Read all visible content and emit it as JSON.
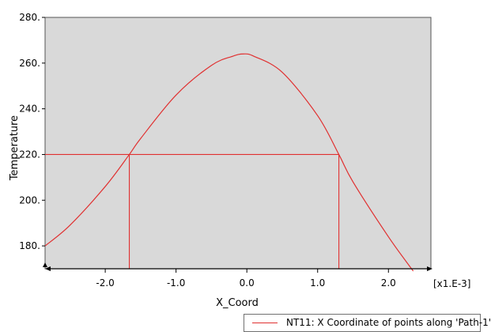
{
  "chart_data": {
    "type": "line",
    "xlabel": "X_Coord",
    "ylabel": "Temperature",
    "x_multiplier_label": "[x1.E-3]",
    "xlim": [
      -2.85,
      2.6
    ],
    "ylim": [
      170,
      280
    ],
    "x_ticks": [
      -2.0,
      -1.0,
      0.0,
      1.0,
      2.0
    ],
    "x_tick_labels": [
      "-2.0",
      "-1.0",
      "0.0",
      "1.0",
      "2.0"
    ],
    "y_ticks": [
      180,
      200,
      220,
      240,
      260,
      280
    ],
    "y_tick_labels": [
      "180.",
      "200.",
      "220.",
      "240.",
      "260.",
      "280."
    ],
    "legend_position": "bottom-right",
    "colors": {
      "plot_background": "#d9d9d9",
      "series": "#e03030"
    },
    "series": [
      {
        "name": "NT11: X Coordinate of points along 'Path-1'",
        "x": [
          -2.85,
          -2.5,
          -2.0,
          -1.66,
          -1.5,
          -1.0,
          -0.5,
          -0.2,
          -0.05,
          0.1,
          0.5,
          1.0,
          1.3,
          1.5,
          2.0,
          2.35
        ],
        "y": [
          180,
          189,
          206,
          220,
          227,
          246,
          259,
          263,
          264,
          263,
          256,
          237,
          220,
          208,
          184,
          169
        ]
      }
    ],
    "reference_lines": {
      "horizontal_y": 220,
      "horizontal_x_range": [
        -2.85,
        1.3
      ],
      "vertical_x": [
        -1.66,
        1.3
      ]
    }
  }
}
